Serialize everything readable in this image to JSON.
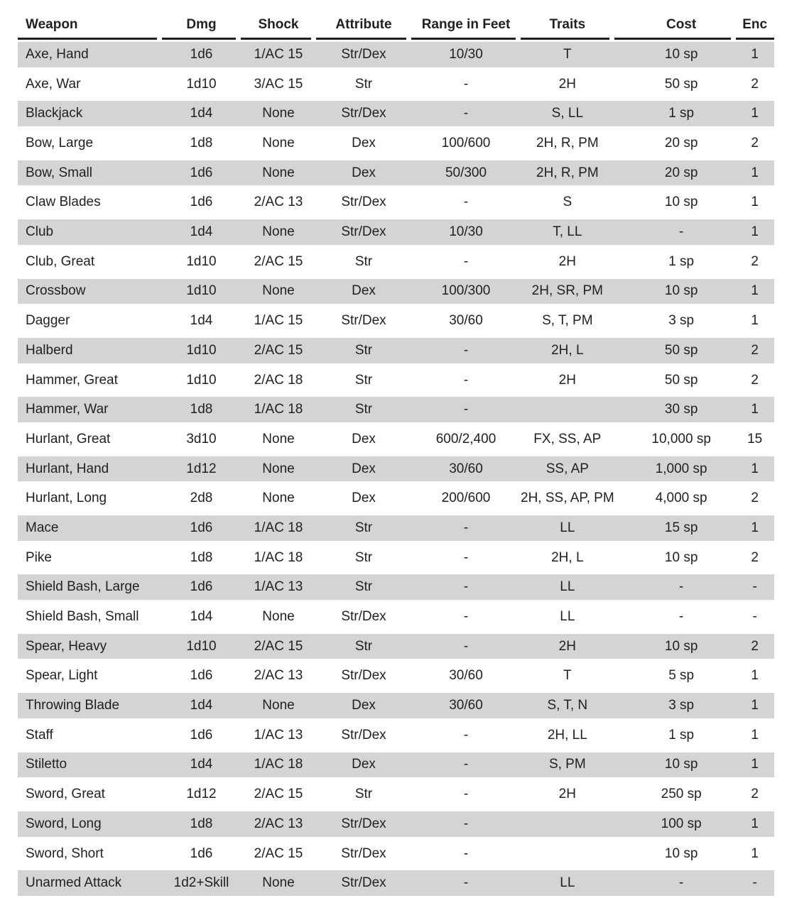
{
  "table": {
    "title": "weapons-table",
    "columns": [
      {
        "id": "weapon",
        "label": "Weapon",
        "align": "left"
      },
      {
        "id": "dmg",
        "label": "Dmg",
        "align": "center"
      },
      {
        "id": "shock",
        "label": "Shock",
        "align": "center"
      },
      {
        "id": "attribute",
        "label": "Attribute",
        "align": "center"
      },
      {
        "id": "range",
        "label": "Range in Feet",
        "align": "center"
      },
      {
        "id": "traits",
        "label": "Traits",
        "align": "center"
      },
      {
        "id": "cost",
        "label": "Cost",
        "align": "center"
      },
      {
        "id": "enc",
        "label": "Enc",
        "align": "center"
      }
    ],
    "rows": [
      [
        "Axe, Hand",
        "1d6",
        "1/AC 15",
        "Str/Dex",
        "10/30",
        "T",
        "10 sp",
        "1"
      ],
      [
        "Axe, War",
        "1d10",
        "3/AC 15",
        "Str",
        "-",
        "2H",
        "50 sp",
        "2"
      ],
      [
        "Blackjack",
        "1d4",
        "None",
        "Str/Dex",
        "-",
        "S, LL",
        "1 sp",
        "1"
      ],
      [
        "Bow, Large",
        "1d8",
        "None",
        "Dex",
        "100/600",
        "2H, R, PM",
        "20 sp",
        "2"
      ],
      [
        "Bow, Small",
        "1d6",
        "None",
        "Dex",
        "50/300",
        "2H, R, PM",
        "20 sp",
        "1"
      ],
      [
        "Claw Blades",
        "1d6",
        "2/AC 13",
        "Str/Dex",
        "-",
        "S",
        "10 sp",
        "1"
      ],
      [
        "Club",
        "1d4",
        "None",
        "Str/Dex",
        "10/30",
        "T, LL",
        "-",
        "1"
      ],
      [
        "Club, Great",
        "1d10",
        "2/AC 15",
        "Str",
        "-",
        "2H",
        "1 sp",
        "2"
      ],
      [
        "Crossbow",
        "1d10",
        "None",
        "Dex",
        "100/300",
        "2H, SR, PM",
        "10 sp",
        "1"
      ],
      [
        "Dagger",
        "1d4",
        "1/AC 15",
        "Str/Dex",
        "30/60",
        "S, T, PM",
        "3 sp",
        "1"
      ],
      [
        "Halberd",
        "1d10",
        "2/AC 15",
        "Str",
        "-",
        "2H, L",
        "50 sp",
        "2"
      ],
      [
        "Hammer, Great",
        "1d10",
        "2/AC 18",
        "Str",
        "-",
        "2H",
        "50 sp",
        "2"
      ],
      [
        "Hammer, War",
        "1d8",
        "1/AC 18",
        "Str",
        "-",
        "",
        "30 sp",
        "1"
      ],
      [
        "Hurlant, Great",
        "3d10",
        "None",
        "Dex",
        "600/2,400",
        "FX, SS, AP",
        "10,000 sp",
        "15"
      ],
      [
        "Hurlant, Hand",
        "1d12",
        "None",
        "Dex",
        "30/60",
        "SS, AP",
        "1,000 sp",
        "1"
      ],
      [
        "Hurlant, Long",
        "2d8",
        "None",
        "Dex",
        "200/600",
        "2H, SS, AP, PM",
        "4,000 sp",
        "2"
      ],
      [
        "Mace",
        "1d6",
        "1/AC 18",
        "Str",
        "-",
        "LL",
        "15 sp",
        "1"
      ],
      [
        "Pike",
        "1d8",
        "1/AC 18",
        "Str",
        "-",
        "2H, L",
        "10 sp",
        "2"
      ],
      [
        "Shield Bash, Large",
        "1d6",
        "1/AC 13",
        "Str",
        "-",
        "LL",
        "-",
        "-"
      ],
      [
        "Shield Bash, Small",
        "1d4",
        "None",
        "Str/Dex",
        "-",
        "LL",
        "-",
        "-"
      ],
      [
        "Spear, Heavy",
        "1d10",
        "2/AC 15",
        "Str",
        "-",
        "2H",
        "10 sp",
        "2"
      ],
      [
        "Spear, Light",
        "1d6",
        "2/AC 13",
        "Str/Dex",
        "30/60",
        "T",
        "5 sp",
        "1"
      ],
      [
        "Throwing Blade",
        "1d4",
        "None",
        "Dex",
        "30/60",
        "S, T, N",
        "3 sp",
        "1"
      ],
      [
        "Staff",
        "1d6",
        "1/AC 13",
        "Str/Dex",
        "-",
        "2H, LL",
        "1 sp",
        "1"
      ],
      [
        "Stiletto",
        "1d4",
        "1/AC 18",
        "Dex",
        "-",
        "S, PM",
        "10 sp",
        "1"
      ],
      [
        "Sword, Great",
        "1d12",
        "2/AC 15",
        "Str",
        "-",
        "2H",
        "250 sp",
        "2"
      ],
      [
        "Sword, Long",
        "1d8",
        "2/AC 13",
        "Str/Dex",
        "-",
        "",
        "100 sp",
        "1"
      ],
      [
        "Sword, Short",
        "1d6",
        "2/AC 15",
        "Str/Dex",
        "-",
        "",
        "10 sp",
        "1"
      ],
      [
        "Unarmed Attack",
        "1d2+Skill",
        "None",
        "Str/Dex",
        "-",
        "LL",
        "-",
        "-"
      ]
    ],
    "style": {
      "alt_row_color": "#d3d4d4",
      "text_color": "#231f20",
      "header_rule_color": "#231f20",
      "background_color": "#ffffff"
    }
  }
}
